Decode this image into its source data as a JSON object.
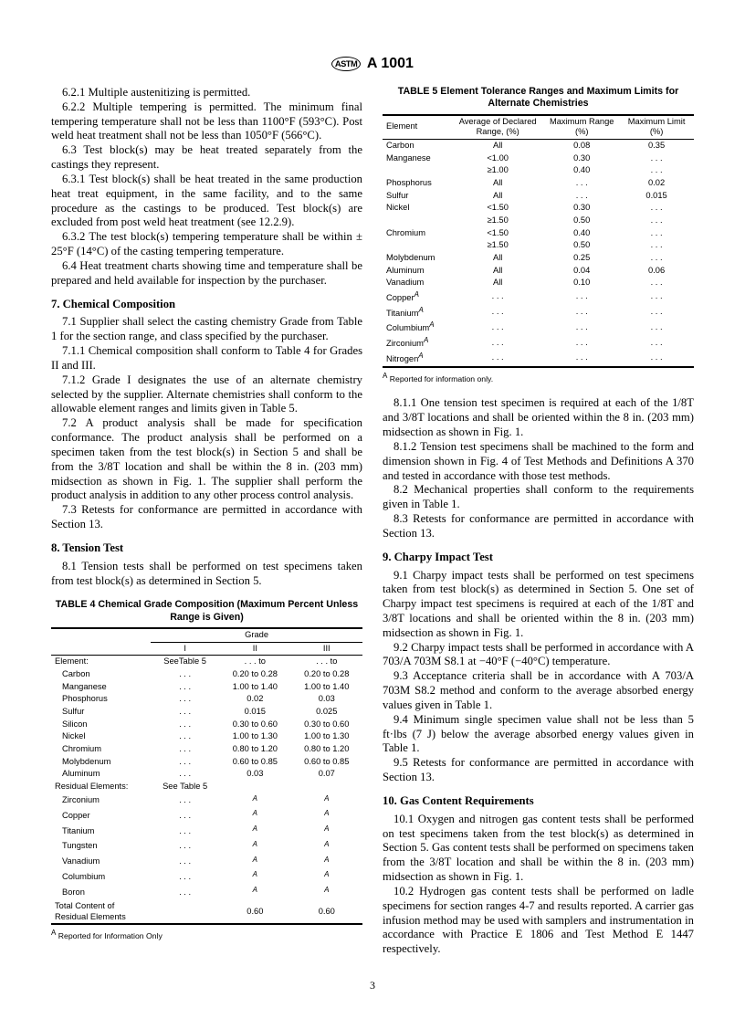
{
  "header": {
    "logo": "ASTM",
    "designation": "A 1001"
  },
  "left": {
    "p1": "6.2.1 Multiple austenitizing is permitted.",
    "p2": "6.2.2 Multiple tempering is permitted. The minimum final tempering temperature shall not be less than 1100°F (593°C). Post weld heat treatment shall not be less than 1050°F (566°C).",
    "p3": "6.3 Test block(s) may be heat treated separately from the castings they represent.",
    "p4": "6.3.1 Test block(s) shall be heat treated in the same production heat treat equipment, in the same facility, and to the same procedure as the castings to be produced. Test block(s) are excluded from post weld heat treatment (see 12.2.9).",
    "p5": "6.3.2 The test block(s) tempering temperature shall be within ± 25°F (14°C) of the casting tempering temperature.",
    "p6": "6.4 Heat treatment charts showing time and temperature shall be prepared and held available for inspection by the purchaser.",
    "s7": "7. Chemical Composition",
    "p7_1": "7.1 Supplier shall select the casting chemistry Grade from Table 1 for the section range, and class specified by the purchaser.",
    "p7_1_1": "7.1.1 Chemical composition shall conform to Table 4 for Grades II and III.",
    "p7_1_2": "7.1.2 Grade I designates the use of an alternate chemistry selected by the supplier. Alternate chemistries shall conform to the allowable element ranges and limits given in Table 5.",
    "p7_2": "7.2 A product analysis shall be made for specification conformance. The product analysis shall be performed on a specimen taken from the test block(s) in Section 5 and shall be from the 3/8T location and shall be within the 8 in. (203 mm) midsection as shown in Fig. 1. The supplier shall perform the product analysis in addition to any other process control analysis.",
    "p7_3": "7.3 Retests for conformance are permitted in accordance with Section 13.",
    "s8": "8. Tension Test",
    "p8_1": "8.1 Tension tests shall be performed on test specimens taken from test block(s) as determined in Section 5."
  },
  "table4": {
    "caption": "TABLE 4 Chemical Grade Composition (Maximum Percent Unless Range is Given)",
    "gradeHeader": "Grade",
    "cols": [
      "",
      "I",
      "II",
      "III"
    ],
    "elementLabel": "Element:",
    "seeTable5": "SeeTable 5",
    "toLabel": ". . . to",
    "rows": [
      [
        "Carbon",
        ". . .",
        "0.20 to 0.28",
        "0.20 to 0.28"
      ],
      [
        "Manganese",
        ". . .",
        "1.00 to 1.40",
        "1.00 to 1.40"
      ],
      [
        "Phosphorus",
        ". . .",
        "0.02",
        "0.03"
      ],
      [
        "Sulfur",
        ". . .",
        "0.015",
        "0.025"
      ],
      [
        "Silicon",
        ". . .",
        "0.30 to 0.60",
        "0.30 to 0.60"
      ],
      [
        "Nickel",
        ". . .",
        "1.00 to 1.30",
        "1.00 to 1.30"
      ],
      [
        "Chromium",
        ". . .",
        "0.80 to 1.20",
        "0.80 to 1.20"
      ],
      [
        "Molybdenum",
        ". . .",
        "0.60 to 0.85",
        "0.60 to 0.85"
      ],
      [
        "Aluminum",
        ". . .",
        "0.03",
        "0.07"
      ]
    ],
    "residualLabel": "Residual Elements:",
    "seeTable5b": "See Table 5",
    "residualRows": [
      [
        "Zirconium",
        ". . .",
        "A",
        "A"
      ],
      [
        "Copper",
        ". . .",
        "A",
        "A"
      ],
      [
        "Titanium",
        ". . .",
        "A",
        "A"
      ],
      [
        "Tungsten",
        ". . .",
        "A",
        "A"
      ],
      [
        "Vanadium",
        ". . .",
        "A",
        "A"
      ],
      [
        "Columbium",
        ". . .",
        "A",
        "A"
      ],
      [
        "Boron",
        ". . .",
        "A",
        "A"
      ]
    ],
    "totalLabel": "Total Content of Residual Elements",
    "totalRow": [
      "",
      "",
      "0.60",
      "0.60"
    ],
    "footnoteMark": "A",
    "footnote": " Reported for Information Only"
  },
  "table5": {
    "caption": "TABLE 5 Element Tolerance Ranges and Maximum Limits for Alternate Chemistries",
    "headers": [
      "Element",
      "Average of Declared Range, (%)",
      "Maximum Range (%)",
      "Maximum Limit (%)"
    ],
    "rows": [
      [
        "Carbon",
        "All",
        "0.08",
        "0.35"
      ],
      [
        "Manganese",
        "<1.00",
        "0.30",
        ". . ."
      ],
      [
        "",
        "≥1.00",
        "0.40",
        ". . ."
      ],
      [
        "Phosphorus",
        "All",
        ". . .",
        "0.02"
      ],
      [
        "Sulfur",
        "All",
        ". . .",
        "0.015"
      ],
      [
        "Nickel",
        "<1.50",
        "0.30",
        ". . ."
      ],
      [
        "",
        "≥1.50",
        "0.50",
        ". . ."
      ],
      [
        "Chromium",
        "<1.50",
        "0.40",
        ". . ."
      ],
      [
        "",
        "≥1.50",
        "0.50",
        ". . ."
      ],
      [
        "Molybdenum",
        "All",
        "0.25",
        ". . ."
      ],
      [
        "Aluminum",
        "All",
        "0.04",
        "0.06"
      ],
      [
        "Vanadium",
        "All",
        "0.10",
        ". . ."
      ],
      [
        "Copper",
        ". . .",
        ". . .",
        ". . ."
      ],
      [
        "Titanium",
        ". . .",
        ". . .",
        ". . ."
      ],
      [
        "Columbium",
        ". . .",
        ". . .",
        ". . ."
      ],
      [
        "Zirconium",
        ". . .",
        ". . .",
        ". . ."
      ],
      [
        "Nitrogen",
        ". . .",
        ". . .",
        ". . ."
      ]
    ],
    "footnoteIndices": [
      12,
      13,
      14,
      15,
      16
    ],
    "footnoteMark": "A",
    "footnote": " Reported for information only."
  },
  "right": {
    "p8_1_1": "8.1.1 One tension test specimen is required at each of the 1/8T and 3/8T locations and shall be oriented within the 8 in. (203 mm) midsection as shown in Fig. 1.",
    "p8_1_2": "8.1.2 Tension test specimens shall be machined to the form and dimension shown in Fig. 4 of Test Methods and Definitions A 370 and tested in accordance with those test methods.",
    "p8_2": "8.2 Mechanical properties shall conform to the requirements given in Table 1.",
    "p8_3": "8.3 Retests for conformance are permitted in accordance with Section 13.",
    "s9": "9. Charpy Impact Test",
    "p9_1": "9.1 Charpy impact tests shall be performed on test specimens taken from test block(s) as determined in Section 5. One set of Charpy impact test specimens is required at each of the 1/8T and 3/8T locations and shall be oriented within the 8 in. (203 mm) midsection as shown in Fig. 1.",
    "p9_2": "9.2 Charpy impact tests shall be performed in accordance with A 703/A 703M S8.1 at −40°F (−40°C) temperature.",
    "p9_3": "9.3 Acceptance criteria shall be in accordance with A 703/A 703M S8.2 method and conform to the average absorbed energy values given in Table 1.",
    "p9_4": "9.4 Minimum single specimen value shall not be less than 5 ft·lbs (7 J) below the average absorbed energy values given in Table 1.",
    "p9_5": "9.5 Retests for conformance are permitted in accordance with Section 13.",
    "s10": "10. Gas Content Requirements",
    "p10_1": "10.1 Oxygen and nitrogen gas content tests shall be performed on test specimens taken from the test block(s) as determined in Section 5. Gas content tests shall be performed on specimens taken from the 3/8T location and shall be within the 8 in. (203 mm) midsection as shown in Fig. 1.",
    "p10_2": "10.2 Hydrogen gas content tests shall be performed on ladle specimens for section ranges 4-7 and results reported. A carrier gas infusion method may be used with samplers and instrumentation in accordance with Practice E 1806 and Test Method E 1447 respectively."
  },
  "pageNumber": "3"
}
